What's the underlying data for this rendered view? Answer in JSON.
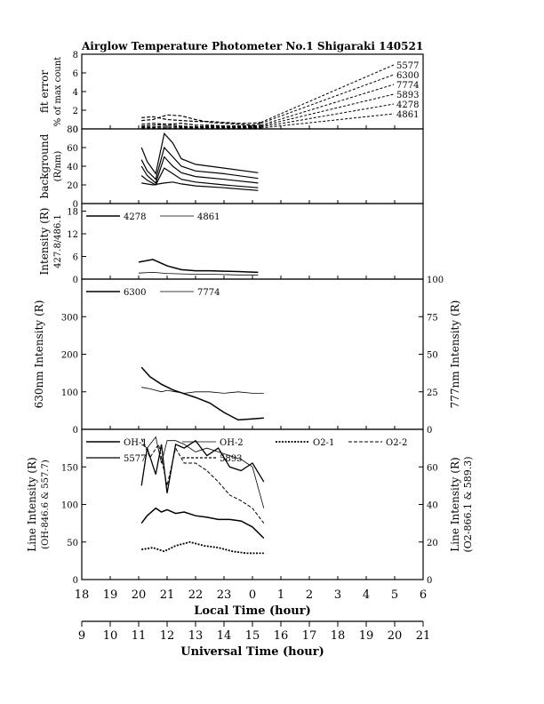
{
  "title": "Airglow Temperature Photometer No.1   Shigaraki   140521",
  "chart_data": [
    {
      "id": "fit-error",
      "type": "line",
      "ylabel": [
        "fit error",
        "% of max count"
      ],
      "ylim": [
        0,
        8
      ],
      "yticks": [
        0,
        2,
        4,
        6,
        8
      ],
      "xlim": [
        18,
        30
      ],
      "legend": [
        "5577",
        "6300",
        "7774",
        "5893",
        "4278",
        "4861"
      ],
      "series": [
        {
          "name": "5577",
          "x": [
            20.1,
            20.5,
            21.0,
            21.5,
            22.0,
            22.5,
            23.0,
            23.5,
            24.0,
            24.3
          ],
          "y": [
            1.2,
            1.3,
            1.0,
            0.9,
            0.8,
            0.8,
            0.7,
            0.6,
            0.6,
            0.7
          ]
        },
        {
          "name": "6300",
          "x": [
            20.1,
            20.5,
            21.0,
            21.5,
            22.0,
            22.5,
            23.0,
            23.5,
            24.0,
            24.3
          ],
          "y": [
            0.9,
            1.0,
            1.5,
            1.4,
            1.0,
            0.7,
            0.6,
            0.5,
            0.4,
            0.6
          ]
        },
        {
          "name": "7774",
          "x": [
            20.1,
            20.5,
            21.0,
            21.5,
            22.0,
            22.5,
            23.0,
            23.5,
            24.0,
            24.3
          ],
          "y": [
            0.3,
            0.4,
            0.5,
            0.3,
            0.2,
            0.3,
            0.3,
            0.3,
            0.3,
            0.4
          ]
        },
        {
          "name": "5893",
          "x": [
            20.1,
            20.5,
            21.0,
            21.5,
            22.0,
            22.5,
            23.0,
            23.5,
            24.0,
            24.3
          ],
          "y": [
            0.5,
            0.6,
            0.5,
            0.6,
            0.4,
            0.4,
            0.3,
            0.3,
            0.3,
            0.3
          ]
        },
        {
          "name": "4278",
          "x": [
            20.1,
            20.5,
            21.0,
            21.5,
            22.0,
            22.5,
            23.0,
            23.5,
            24.0,
            24.3
          ],
          "y": [
            0.2,
            0.2,
            0.3,
            0.2,
            0.2,
            0.2,
            0.2,
            0.2,
            0.2,
            0.2
          ]
        },
        {
          "name": "4861",
          "x": [
            20.1,
            20.5,
            21.0,
            21.5,
            22.0,
            22.5,
            23.0,
            23.5,
            24.0,
            24.3
          ],
          "y": [
            0.1,
            0.1,
            0.1,
            0.1,
            0.1,
            0.1,
            0.1,
            0.1,
            0.1,
            0.1
          ]
        }
      ]
    },
    {
      "id": "background",
      "type": "line",
      "ylabel": [
        "background",
        "(R/nm)"
      ],
      "ylim": [
        0,
        80
      ],
      "yticks": [
        0,
        20,
        40,
        60,
        80
      ],
      "xlim": [
        18,
        30
      ],
      "series": [
        {
          "x": [
            20.1,
            20.3,
            20.6,
            20.9,
            21.2,
            21.5,
            22.0,
            23.0,
            24.2
          ],
          "y": [
            60,
            45,
            32,
            75,
            65,
            48,
            42,
            38,
            33
          ]
        },
        {
          "x": [
            20.1,
            20.3,
            20.6,
            20.9,
            21.2,
            21.5,
            22.0,
            23.0,
            24.2
          ],
          "y": [
            47,
            35,
            26,
            60,
            50,
            40,
            35,
            32,
            27
          ]
        },
        {
          "x": [
            20.1,
            20.3,
            20.6,
            20.9,
            21.2,
            21.5,
            22.0,
            23.0,
            24.2
          ],
          "y": [
            40,
            30,
            22,
            50,
            40,
            33,
            29,
            26,
            22
          ]
        },
        {
          "x": [
            20.1,
            20.3,
            20.6,
            20.9,
            21.2,
            21.5,
            22.0,
            23.0,
            24.2
          ],
          "y": [
            30,
            25,
            20,
            38,
            32,
            26,
            23,
            20,
            17
          ]
        },
        {
          "x": [
            20.1,
            20.5,
            20.9,
            21.2,
            21.5,
            22.0,
            23.0,
            24.2
          ],
          "y": [
            22,
            20,
            22,
            23,
            21,
            19,
            17,
            14
          ]
        }
      ]
    },
    {
      "id": "blue-lines",
      "type": "line",
      "ylabel": [
        "Intensity (R)",
        "427.8/486.1"
      ],
      "ylim": [
        0,
        20
      ],
      "yticks": [
        0,
        6,
        12,
        18
      ],
      "xlim": [
        18,
        30
      ],
      "legend": [
        "4278",
        "4861"
      ],
      "series": [
        {
          "name": "4278",
          "x": [
            20.0,
            20.5,
            21.0,
            21.5,
            22.0,
            22.5,
            23.0,
            23.5,
            24.2
          ],
          "y": [
            4.5,
            5.2,
            3.5,
            2.5,
            2.2,
            2.2,
            2.1,
            2.0,
            1.8
          ]
        },
        {
          "name": "4861",
          "x": [
            20.0,
            20.5,
            21.0,
            21.5,
            22.0,
            22.5,
            23.0,
            23.5,
            24.2
          ],
          "y": [
            1.6,
            1.8,
            1.5,
            1.4,
            1.3,
            1.3,
            1.2,
            1.1,
            1.1
          ]
        }
      ]
    },
    {
      "id": "red-lines",
      "type": "line",
      "ylabel_left": "630nm Intensity (R)",
      "ylabel_right": "777nm Intensity (R)",
      "ylim_left": [
        0,
        400
      ],
      "ylim_right": [
        0,
        100
      ],
      "yticks_left": [
        0,
        100,
        200,
        300
      ],
      "yticks_right": [
        0,
        25,
        50,
        75,
        100
      ],
      "xlim": [
        18,
        30
      ],
      "legend": [
        "6300",
        "7774"
      ],
      "series": [
        {
          "name": "6300",
          "axis": "left",
          "x": [
            20.1,
            20.4,
            20.8,
            21.2,
            21.6,
            22.0,
            22.5,
            23.0,
            23.5,
            24.0,
            24.4
          ],
          "y": [
            165,
            140,
            120,
            105,
            95,
            85,
            70,
            45,
            25,
            28,
            30
          ]
        },
        {
          "name": "7774",
          "axis": "right",
          "x": [
            20.1,
            20.4,
            20.8,
            21.0,
            21.3,
            21.6,
            22.0,
            22.5,
            23.0,
            23.5,
            24.0,
            24.4
          ],
          "y": [
            28,
            27,
            25,
            26,
            25,
            24,
            25,
            25,
            24,
            25,
            24,
            24
          ]
        }
      ]
    },
    {
      "id": "line-intensity",
      "type": "line",
      "ylabel_left": [
        "Line Intensity (R)",
        "(OH-846.6 & 557.7)"
      ],
      "ylabel_right": [
        "Line Intensity (R)",
        "(O2-866.1 & 589.3)"
      ],
      "ylim_left": [
        0,
        200
      ],
      "ylim_right": [
        0,
        80
      ],
      "yticks_left": [
        0,
        50,
        100,
        150
      ],
      "yticks_right": [
        0,
        20,
        40,
        60
      ],
      "xlim": [
        18,
        30
      ],
      "legend": [
        "OH-1",
        "OH-2",
        "O2-1",
        "O2-2",
        "5577",
        "5893"
      ],
      "series": [
        {
          "name": "OH-1",
          "axis": "left",
          "x": [
            20.1,
            20.3,
            20.6,
            20.8,
            21.0,
            21.3,
            21.6,
            22.0,
            22.4,
            22.8,
            23.2,
            23.6,
            24.0,
            24.4
          ],
          "y": [
            75,
            85,
            95,
            90,
            93,
            88,
            90,
            85,
            83,
            80,
            80,
            78,
            70,
            55
          ]
        },
        {
          "name": "OH-2",
          "axis": "left",
          "x": [
            20.1,
            20.3,
            20.6,
            20.8,
            21.0,
            21.3,
            21.6,
            22.0,
            22.4,
            22.8,
            23.2,
            23.6,
            24.0,
            24.4
          ],
          "y": [
            180,
            175,
            190,
            155,
            185,
            185,
            180,
            170,
            175,
            170,
            165,
            160,
            150,
            95
          ]
        },
        {
          "name": "O2-1",
          "axis": "right",
          "x": [
            20.1,
            20.5,
            20.9,
            21.3,
            21.8,
            22.3,
            22.8,
            23.3,
            23.8,
            24.4
          ],
          "y": [
            16,
            17,
            15,
            18,
            20,
            18,
            17,
            15,
            14,
            14
          ]
        },
        {
          "name": "O2-2",
          "axis": "right",
          "x": [
            20.1,
            20.4,
            20.7,
            21.0,
            21.3,
            21.6,
            22.0,
            22.4,
            22.8,
            23.2,
            23.6,
            24.0,
            24.4
          ],
          "y": [
            75,
            65,
            72,
            50,
            70,
            62,
            62,
            58,
            52,
            45,
            42,
            38,
            30
          ]
        },
        {
          "name": "5577",
          "axis": "left",
          "x": [
            20.1,
            20.3,
            20.6,
            20.8,
            21.0,
            21.3,
            21.6,
            22.0,
            22.4,
            22.8,
            23.2,
            23.6,
            24.0,
            24.4
          ],
          "y": [
            125,
            175,
            140,
            180,
            115,
            180,
            175,
            185,
            165,
            175,
            150,
            145,
            155,
            130
          ]
        }
      ]
    }
  ],
  "x_axes": {
    "local": {
      "label": "Local Time (hour)",
      "ticks": [
        "18",
        "19",
        "20",
        "21",
        "22",
        "23",
        "0",
        "1",
        "2",
        "3",
        "4",
        "5",
        "6"
      ]
    },
    "universal": {
      "label": "Universal Time (hour)",
      "ticks": [
        "9",
        "10",
        "11",
        "12",
        "13",
        "14",
        "15",
        "16",
        "17",
        "18",
        "19",
        "20",
        "21"
      ]
    }
  }
}
